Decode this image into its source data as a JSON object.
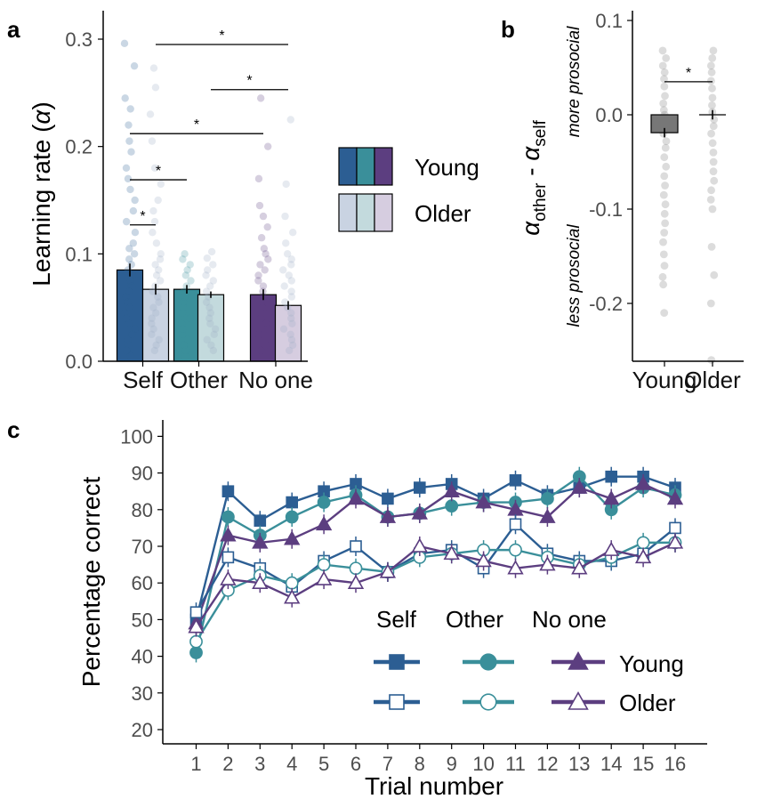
{
  "panels": {
    "a": "a",
    "b": "b",
    "c": "c"
  },
  "colors": {
    "self_young": "#2c5e93",
    "other_young": "#3a8f9a",
    "noone_young": "#5c3e80",
    "self_older": "#c9d3e2",
    "other_older": "#c3dadd",
    "noone_older": "#d6cde0"
  },
  "chart_data": [
    {
      "id": "a",
      "type": "bar",
      "ylabel_main": "Learning rate (",
      "ylabel_symbol": "α",
      "ylabel_end": ")",
      "categories": [
        "Self",
        "Other",
        "No one"
      ],
      "ylim": [
        0,
        0.3
      ],
      "yticks": [
        "0.0",
        "0.1",
        "0.2",
        "0.3"
      ],
      "series": [
        {
          "name": "Young",
          "values": [
            0.085,
            0.067,
            0.062
          ],
          "errors": [
            0.006,
            0.004,
            0.005
          ]
        },
        {
          "name": "Older",
          "values": [
            0.067,
            0.062,
            0.052
          ],
          "errors": [
            0.005,
            0.003,
            0.004
          ]
        }
      ],
      "legend": [
        "Young",
        "Older"
      ],
      "legend_position": "right",
      "significance": [
        {
          "label": "*",
          "y": 0.295,
          "from": "Self-Older",
          "to": "No one-Older"
        },
        {
          "label": "*",
          "y": 0.253,
          "from": "Other-Older",
          "to": "No one-Older"
        },
        {
          "label": "*",
          "y": 0.212,
          "from": "Self-Young",
          "to": "No one-Young"
        },
        {
          "label": "*",
          "y": 0.169,
          "from": "Self-Young",
          "to": "Other-Young"
        },
        {
          "label": "*",
          "y": 0.127,
          "from": "Self-Young",
          "to": "Self-Older"
        }
      ],
      "points": {
        "Self-Young": [
          0.296,
          0.275,
          0.245,
          0.235,
          0.22,
          0.205,
          0.195,
          0.18,
          0.17,
          0.16,
          0.15,
          0.14,
          0.13,
          0.12,
          0.11,
          0.105,
          0.1,
          0.095,
          0.09,
          0.085,
          0.08,
          0.075,
          0.07,
          0.065,
          0.06,
          0.055,
          0.05,
          0.045,
          0.04,
          0.035,
          0.03,
          0.025,
          0.02,
          0.015,
          0.01,
          0.005
        ],
        "Self-Older": [
          0.273,
          0.255,
          0.23,
          0.205,
          0.18,
          0.165,
          0.15,
          0.14,
          0.13,
          0.12,
          0.11,
          0.1,
          0.095,
          0.09,
          0.085,
          0.08,
          0.075,
          0.07,
          0.065,
          0.06,
          0.055,
          0.05,
          0.045,
          0.04,
          0.035,
          0.03,
          0.025,
          0.02,
          0.015,
          0.01
        ],
        "Other-Young": [
          0.1,
          0.095,
          0.09,
          0.085,
          0.08,
          0.075,
          0.07,
          0.065,
          0.06,
          0.055,
          0.05,
          0.045,
          0.04,
          0.035,
          0.03,
          0.025,
          0.02,
          0.015,
          0.01,
          0.005
        ],
        "Other-Older": [
          0.102,
          0.096,
          0.09,
          0.085,
          0.08,
          0.075,
          0.07,
          0.065,
          0.06,
          0.055,
          0.05,
          0.045,
          0.04,
          0.035,
          0.03,
          0.025,
          0.02,
          0.015,
          0.01
        ],
        "No one-Young": [
          0.245,
          0.2,
          0.17,
          0.145,
          0.135,
          0.125,
          0.115,
          0.105,
          0.1,
          0.095,
          0.09,
          0.085,
          0.08,
          0.075,
          0.07,
          0.065,
          0.06,
          0.055,
          0.05,
          0.045,
          0.04,
          0.035,
          0.03,
          0.025,
          0.02,
          0.015,
          0.01
        ],
        "No one-Older": [
          0.225,
          0.165,
          0.135,
          0.12,
          0.11,
          0.1,
          0.095,
          0.09,
          0.085,
          0.08,
          0.075,
          0.07,
          0.065,
          0.06,
          0.055,
          0.05,
          0.045,
          0.04,
          0.035,
          0.03,
          0.025,
          0.02,
          0.015,
          0.01
        ]
      }
    },
    {
      "id": "b",
      "type": "bar",
      "ylabel_alpha": "α",
      "ylabel_sub1": "other",
      "ylabel_minus": " - ",
      "ylabel_sub2": "self",
      "upper_note": "more prosocial",
      "lower_note": "less prosocial",
      "categories": [
        "Young",
        "Older"
      ],
      "ylim": [
        -0.26,
        0.11
      ],
      "yticks": [
        "0.1",
        "0.0",
        "-0.1",
        "-0.2"
      ],
      "values": [
        -0.019,
        0.0
      ],
      "errors": [
        0.005,
        0.005
      ],
      "significance": {
        "label": "*",
        "y": 0.035
      },
      "points": {
        "Young": [
          0.068,
          0.06,
          0.052,
          0.045,
          0.038,
          0.03,
          0.02,
          0.012,
          0.005,
          0.0,
          -0.005,
          -0.012,
          -0.02,
          -0.028,
          -0.035,
          -0.045,
          -0.055,
          -0.065,
          -0.075,
          -0.085,
          -0.095,
          -0.105,
          -0.115,
          -0.125,
          -0.135,
          -0.148,
          -0.16,
          -0.172,
          -0.18,
          -0.21
        ],
        "Older": [
          0.068,
          0.06,
          0.052,
          0.045,
          0.036,
          0.028,
          0.018,
          0.01,
          0.003,
          -0.005,
          -0.012,
          -0.02,
          -0.03,
          -0.04,
          -0.05,
          -0.06,
          -0.07,
          -0.08,
          -0.09,
          -0.1,
          -0.14,
          -0.17,
          -0.2,
          -0.26
        ]
      }
    },
    {
      "id": "c",
      "type": "line",
      "xlabel": "Trial number",
      "ylabel": "Percentage correct",
      "x": [
        1,
        2,
        3,
        4,
        5,
        6,
        7,
        8,
        9,
        10,
        11,
        12,
        13,
        14,
        15,
        16
      ],
      "ylim": [
        18,
        101
      ],
      "yticks": [
        20,
        30,
        40,
        50,
        60,
        70,
        80,
        90,
        100
      ],
      "legend_conditions": [
        "Self",
        "Other",
        "No one"
      ],
      "legend_groups": [
        "Young",
        "Older"
      ],
      "legend_position": "bottom-right",
      "series": [
        {
          "name": "Self Young",
          "values": [
            50,
            85,
            77,
            82,
            85,
            87,
            83,
            86,
            87,
            83,
            88,
            84,
            86,
            89,
            89,
            86
          ]
        },
        {
          "name": "Other Young",
          "values": [
            41,
            78,
            73,
            78,
            82,
            84,
            78,
            79,
            81,
            82,
            82,
            83,
            89,
            80,
            86,
            84
          ]
        },
        {
          "name": "No one Young",
          "values": [
            49,
            73,
            71,
            72,
            76,
            83,
            78,
            79,
            85,
            82,
            80,
            78,
            86,
            83,
            87,
            83
          ]
        },
        {
          "name": "Self Older",
          "values": [
            52,
            67,
            64,
            59,
            66,
            70,
            63,
            68,
            69,
            64,
            76,
            68,
            66,
            66,
            68,
            75
          ]
        },
        {
          "name": "Other Older",
          "values": [
            44,
            58,
            62,
            60,
            65,
            64,
            63,
            67,
            68,
            69,
            69,
            67,
            65,
            67,
            71,
            71
          ]
        },
        {
          "name": "No one Older",
          "values": [
            48,
            61,
            60,
            56,
            61,
            60,
            63,
            70,
            68,
            66,
            64,
            65,
            64,
            69,
            67,
            71
          ]
        }
      ]
    }
  ]
}
